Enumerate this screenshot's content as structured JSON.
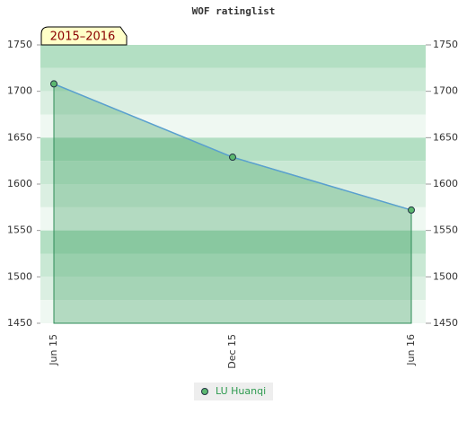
{
  "chart_data": {
    "type": "line",
    "title": "WOF ratinglist",
    "annotation": "2015–2016",
    "categories": [
      "Jun 15",
      "Dec 15",
      "Jun 16"
    ],
    "series": [
      {
        "name": "LU Huanqi",
        "color": "#5aa0d0",
        "values": [
          1708,
          1629,
          1572
        ]
      }
    ],
    "ylim": [
      1450,
      1750
    ],
    "yticks": [
      1450,
      1500,
      1550,
      1600,
      1650,
      1700,
      1750
    ],
    "y2lim": [
      1450,
      1750
    ],
    "y2ticks": [
      1450,
      1500,
      1550,
      1600,
      1650,
      1700,
      1750
    ]
  }
}
